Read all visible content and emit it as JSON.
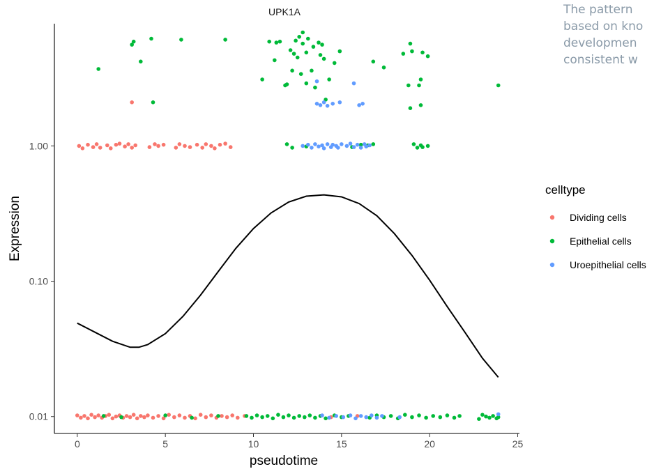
{
  "side_text": [
    "The pattern",
    "based on kno",
    "developmen",
    "consistent w"
  ],
  "chart_data": {
    "type": "scatter",
    "title": "UPK1A",
    "xlabel": "pseudotime",
    "ylabel": "Expression",
    "xlim": [
      -1.3,
      25.1
    ],
    "xticks": [
      0,
      5,
      10,
      15,
      20,
      25
    ],
    "y_scale": "log10",
    "ylim": [
      0.0075,
      8.0
    ],
    "yticks": [
      {
        "value": 0.01,
        "label": "0.01"
      },
      {
        "value": 0.1,
        "label": "0.10"
      },
      {
        "value": 1.0,
        "label": "1.00"
      }
    ],
    "grid": false,
    "legend": {
      "title": "celltype",
      "position": "right",
      "entries": [
        {
          "name": "Dividing cells",
          "color": "#F8766D"
        },
        {
          "name": "Epithelial cells",
          "color": "#00BA38"
        },
        {
          "name": "Uroepithelial cells",
          "color": "#619CFF"
        }
      ]
    },
    "series": [
      {
        "name": "Dividing cells",
        "color": "#F8766D",
        "points": [
          [
            0.1,
            1.0
          ],
          [
            0.3,
            0.96
          ],
          [
            0.6,
            1.02
          ],
          [
            0.9,
            0.98
          ],
          [
            1.1,
            1.03
          ],
          [
            1.3,
            0.97
          ],
          [
            1.7,
            1.01
          ],
          [
            1.9,
            0.96
          ],
          [
            2.2,
            1.02
          ],
          [
            2.4,
            1.04
          ],
          [
            2.7,
            0.99
          ],
          [
            2.9,
            1.03
          ],
          [
            3.1,
            0.97
          ],
          [
            3.3,
            1.01
          ],
          [
            4.1,
            0.98
          ],
          [
            4.4,
            1.03
          ],
          [
            4.6,
            1.0
          ],
          [
            4.9,
            1.02
          ],
          [
            5.6,
            0.97
          ],
          [
            5.8,
            1.03
          ],
          [
            6.1,
            1.0
          ],
          [
            6.4,
            0.98
          ],
          [
            6.8,
            1.02
          ],
          [
            7.1,
            0.97
          ],
          [
            7.3,
            1.03
          ],
          [
            7.6,
            1.0
          ],
          [
            7.8,
            0.96
          ],
          [
            8.1,
            1.02
          ],
          [
            8.4,
            1.04
          ],
          [
            8.7,
            0.98
          ],
          [
            3.1,
            2.1
          ],
          [
            0.0,
            0.0102
          ],
          [
            0.2,
            0.0098
          ],
          [
            0.4,
            0.0101
          ],
          [
            0.6,
            0.0097
          ],
          [
            0.8,
            0.0103
          ],
          [
            1.0,
            0.0099
          ],
          [
            1.2,
            0.0102
          ],
          [
            1.4,
            0.0098
          ],
          [
            1.6,
            0.0101
          ],
          [
            1.8,
            0.0103
          ],
          [
            2.0,
            0.0097
          ],
          [
            2.2,
            0.01
          ],
          [
            2.4,
            0.0102
          ],
          [
            2.6,
            0.0098
          ],
          [
            2.8,
            0.0101
          ],
          [
            3.0,
            0.0099
          ],
          [
            3.2,
            0.0103
          ],
          [
            3.4,
            0.0097
          ],
          [
            3.6,
            0.0101
          ],
          [
            3.8,
            0.0099
          ],
          [
            4.0,
            0.0102
          ],
          [
            4.3,
            0.0098
          ],
          [
            4.6,
            0.0101
          ],
          [
            4.9,
            0.0097
          ],
          [
            5.2,
            0.0103
          ],
          [
            5.5,
            0.0099
          ],
          [
            5.8,
            0.0102
          ],
          [
            6.1,
            0.0098
          ],
          [
            6.4,
            0.0101
          ],
          [
            6.7,
            0.0097
          ],
          [
            7.0,
            0.0103
          ],
          [
            7.3,
            0.0099
          ],
          [
            7.6,
            0.0102
          ],
          [
            7.9,
            0.0098
          ],
          [
            8.2,
            0.0101
          ],
          [
            8.5,
            0.0099
          ],
          [
            8.8,
            0.0102
          ],
          [
            9.1,
            0.0098
          ],
          [
            9.5,
            0.0101
          ],
          [
            14.4,
            0.0099
          ],
          [
            15.9,
            0.0101
          ]
        ]
      },
      {
        "name": "Epithelial cells",
        "color": "#00BA38",
        "points": [
          [
            1.2,
            3.7
          ],
          [
            3.1,
            5.6
          ],
          [
            3.2,
            5.9
          ],
          [
            3.6,
            4.2
          ],
          [
            4.2,
            6.2
          ],
          [
            4.3,
            2.1
          ],
          [
            5.9,
            6.1
          ],
          [
            8.4,
            6.1
          ],
          [
            10.5,
            3.1
          ],
          [
            10.9,
            5.9
          ],
          [
            11.2,
            4.3
          ],
          [
            11.3,
            5.8
          ],
          [
            11.5,
            5.9
          ],
          [
            11.8,
            2.8
          ],
          [
            11.9,
            2.85
          ],
          [
            12.1,
            5.1
          ],
          [
            12.2,
            3.6
          ],
          [
            12.3,
            4.8
          ],
          [
            12.4,
            6.0
          ],
          [
            12.5,
            4.5
          ],
          [
            12.6,
            6.4
          ],
          [
            12.7,
            3.4
          ],
          [
            12.8,
            5.7
          ],
          [
            12.8,
            6.9
          ],
          [
            13.0,
            4.9
          ],
          [
            13.0,
            2.9
          ],
          [
            13.1,
            6.2
          ],
          [
            13.3,
            3.6
          ],
          [
            13.4,
            5.4
          ],
          [
            13.5,
            2.7
          ],
          [
            13.7,
            5.8
          ],
          [
            13.8,
            4.7
          ],
          [
            13.9,
            5.6
          ],
          [
            14.0,
            4.4
          ],
          [
            14.1,
            2.2
          ],
          [
            14.3,
            3.1
          ],
          [
            14.6,
            4.1
          ],
          [
            14.9,
            5.0
          ],
          [
            16.8,
            4.2
          ],
          [
            17.4,
            3.8
          ],
          [
            18.5,
            4.8
          ],
          [
            18.8,
            2.8
          ],
          [
            18.9,
            5.7
          ],
          [
            19.0,
            5.0
          ],
          [
            19.4,
            2.8
          ],
          [
            19.5,
            3.1
          ],
          [
            19.6,
            4.9
          ],
          [
            19.9,
            4.6
          ],
          [
            18.9,
            1.9
          ],
          [
            19.5,
            2.0
          ],
          [
            23.9,
            2.8
          ],
          [
            11.9,
            1.03
          ],
          [
            12.2,
            0.97
          ],
          [
            13.0,
            0.99
          ],
          [
            15.6,
            0.98
          ],
          [
            16.1,
            1.02
          ],
          [
            16.5,
            1.01
          ],
          [
            16.8,
            1.03
          ],
          [
            19.1,
            1.03
          ],
          [
            19.3,
            0.97
          ],
          [
            19.5,
            1.01
          ],
          [
            19.6,
            0.98
          ],
          [
            19.9,
            1.0
          ],
          [
            9.6,
            0.0101
          ],
          [
            9.9,
            0.0098
          ],
          [
            10.2,
            0.0102
          ],
          [
            10.5,
            0.0099
          ],
          [
            10.8,
            0.0101
          ],
          [
            11.1,
            0.0097
          ],
          [
            11.4,
            0.0103
          ],
          [
            11.7,
            0.0099
          ],
          [
            12.0,
            0.0102
          ],
          [
            12.3,
            0.0098
          ],
          [
            12.6,
            0.0101
          ],
          [
            12.9,
            0.0099
          ],
          [
            13.2,
            0.0102
          ],
          [
            13.5,
            0.0098
          ],
          [
            13.8,
            0.0101
          ],
          [
            14.1,
            0.0097
          ],
          [
            14.6,
            0.0102
          ],
          [
            15.0,
            0.0099
          ],
          [
            15.4,
            0.0101
          ],
          [
            16.6,
            0.0098
          ],
          [
            17.0,
            0.0102
          ],
          [
            17.4,
            0.0099
          ],
          [
            17.8,
            0.0101
          ],
          [
            18.2,
            0.0097
          ],
          [
            18.6,
            0.0103
          ],
          [
            19.0,
            0.0099
          ],
          [
            19.4,
            0.0102
          ],
          [
            19.8,
            0.0098
          ],
          [
            20.2,
            0.0101
          ],
          [
            20.6,
            0.0099
          ],
          [
            21.0,
            0.0102
          ],
          [
            21.4,
            0.0098
          ],
          [
            21.7,
            0.0101
          ],
          [
            22.8,
            0.0096
          ],
          [
            23.0,
            0.0103
          ],
          [
            23.2,
            0.01
          ],
          [
            23.4,
            0.0098
          ],
          [
            23.6,
            0.0101
          ],
          [
            23.8,
            0.0097
          ],
          [
            23.9,
            0.0099
          ],
          [
            1.5,
            0.0101
          ],
          [
            2.5,
            0.0099
          ],
          [
            5.0,
            0.0102
          ],
          [
            6.5,
            0.0098
          ],
          [
            8.0,
            0.0101
          ]
        ]
      },
      {
        "name": "Uroepithelial cells",
        "color": "#619CFF",
        "points": [
          [
            13.6,
            3.0
          ],
          [
            15.7,
            2.9
          ],
          [
            13.6,
            2.05
          ],
          [
            13.8,
            2.0
          ],
          [
            14.0,
            2.1
          ],
          [
            14.2,
            1.98
          ],
          [
            14.5,
            2.05
          ],
          [
            14.9,
            2.1
          ],
          [
            16.0,
            2.0
          ],
          [
            16.2,
            2.05
          ],
          [
            12.8,
            1.0
          ],
          [
            13.1,
            1.02
          ],
          [
            13.3,
            0.97
          ],
          [
            13.5,
            1.03
          ],
          [
            13.7,
            0.99
          ],
          [
            13.9,
            1.01
          ],
          [
            14.0,
            0.96
          ],
          [
            14.2,
            1.03
          ],
          [
            14.4,
            0.98
          ],
          [
            14.5,
            1.02
          ],
          [
            14.7,
            1.0
          ],
          [
            14.8,
            0.97
          ],
          [
            15.0,
            1.03
          ],
          [
            15.3,
            1.0
          ],
          [
            15.5,
            1.04
          ],
          [
            15.7,
            0.98
          ],
          [
            15.9,
            1.02
          ],
          [
            16.1,
            0.97
          ],
          [
            16.3,
            1.03
          ],
          [
            16.4,
            0.99
          ],
          [
            16.6,
            1.01
          ],
          [
            13.9,
            0.0102
          ],
          [
            14.3,
            0.0098
          ],
          [
            14.7,
            0.0101
          ],
          [
            15.1,
            0.0099
          ],
          [
            15.5,
            0.0102
          ],
          [
            15.8,
            0.0097
          ],
          [
            16.1,
            0.0101
          ],
          [
            16.4,
            0.0099
          ],
          [
            16.7,
            0.0102
          ],
          [
            17.0,
            0.0098
          ],
          [
            17.3,
            0.0101
          ],
          [
            18.3,
            0.0099
          ],
          [
            23.9,
            0.0104
          ]
        ]
      }
    ],
    "trend_line": {
      "color": "#000000",
      "points": [
        [
          0,
          0.049
        ],
        [
          1,
          0.042
        ],
        [
          2,
          0.036
        ],
        [
          3,
          0.0325
        ],
        [
          3.5,
          0.0325
        ],
        [
          4,
          0.034
        ],
        [
          5,
          0.041
        ],
        [
          6,
          0.055
        ],
        [
          7,
          0.079
        ],
        [
          8,
          0.118
        ],
        [
          9,
          0.175
        ],
        [
          10,
          0.245
        ],
        [
          11,
          0.32
        ],
        [
          12,
          0.385
        ],
        [
          13,
          0.425
        ],
        [
          14,
          0.435
        ],
        [
          15,
          0.42
        ],
        [
          16,
          0.375
        ],
        [
          17,
          0.305
        ],
        [
          18,
          0.225
        ],
        [
          19,
          0.155
        ],
        [
          20,
          0.102
        ],
        [
          21,
          0.065
        ],
        [
          22,
          0.042
        ],
        [
          23,
          0.027
        ],
        [
          23.9,
          0.0195
        ]
      ]
    }
  }
}
